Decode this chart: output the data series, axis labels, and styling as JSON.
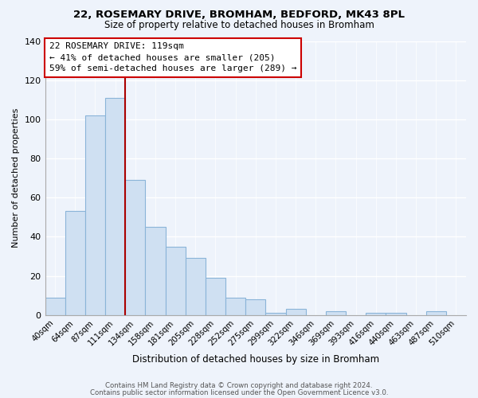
{
  "title": "22, ROSEMARY DRIVE, BROMHAM, BEDFORD, MK43 8PL",
  "subtitle": "Size of property relative to detached houses in Bromham",
  "xlabel": "Distribution of detached houses by size in Bromham",
  "ylabel": "Number of detached properties",
  "bar_labels": [
    "40sqm",
    "64sqm",
    "87sqm",
    "111sqm",
    "134sqm",
    "158sqm",
    "181sqm",
    "205sqm",
    "228sqm",
    "252sqm",
    "275sqm",
    "299sqm",
    "322sqm",
    "346sqm",
    "369sqm",
    "393sqm",
    "416sqm",
    "440sqm",
    "463sqm",
    "487sqm",
    "510sqm"
  ],
  "bar_values": [
    9,
    53,
    102,
    111,
    69,
    45,
    35,
    29,
    19,
    9,
    8,
    1,
    3,
    0,
    2,
    0,
    1,
    1,
    0,
    2,
    0
  ],
  "bar_color": "#cfe0f2",
  "bar_edge_color": "#8ab4d8",
  "highlight_line_index": 3,
  "highlight_line_color": "#aa0000",
  "annotation_title": "22 ROSEMARY DRIVE: 119sqm",
  "annotation_line1": "← 41% of detached houses are smaller (205)",
  "annotation_line2": "59% of semi-detached houses are larger (289) →",
  "annotation_box_color": "#ffffff",
  "annotation_box_edge": "#cc0000",
  "ylim": [
    0,
    140
  ],
  "yticks": [
    0,
    20,
    40,
    60,
    80,
    100,
    120,
    140
  ],
  "footer1": "Contains HM Land Registry data © Crown copyright and database right 2024.",
  "footer2": "Contains public sector information licensed under the Open Government Licence v3.0.",
  "bg_color": "#eef3fb",
  "grid_color": "#ffffff",
  "title_fontsize": 9.5,
  "subtitle_fontsize": 8.5
}
